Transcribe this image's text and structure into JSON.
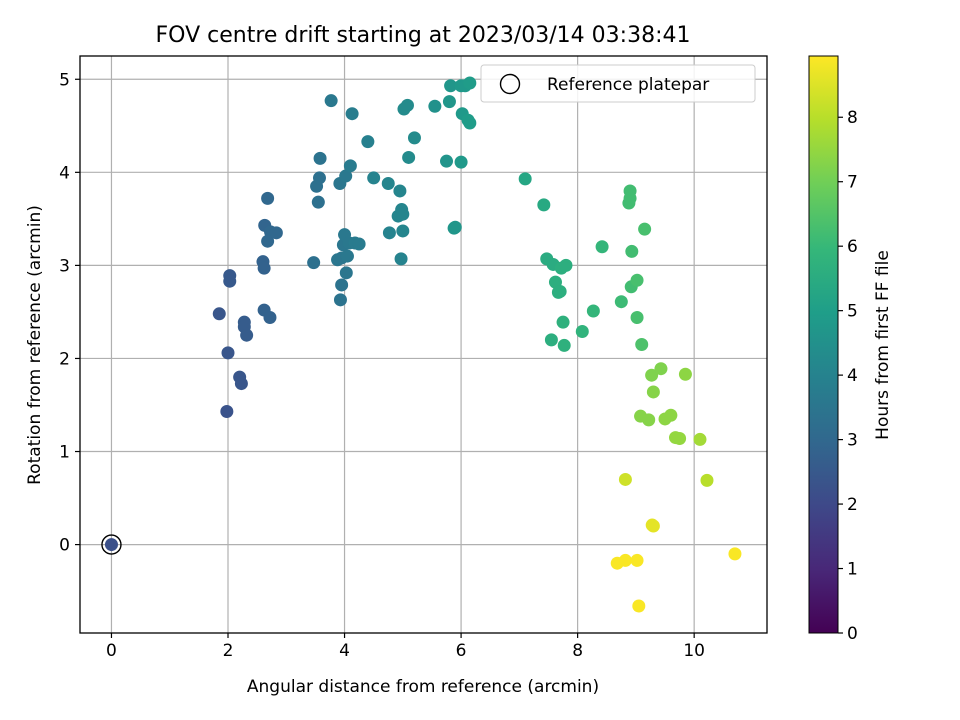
{
  "chart_data": {
    "type": "scatter",
    "title": "FOV centre drift starting at 2023/03/14 03:38:41",
    "xlabel": "Angular distance from reference (arcmin)",
    "ylabel": "Rotation from reference (arcmin)",
    "xlim": [
      -0.54,
      11.25
    ],
    "ylim": [
      -0.95,
      5.25
    ],
    "x_ticks": [
      0,
      2,
      4,
      6,
      8,
      10
    ],
    "y_ticks": [
      0,
      1,
      2,
      3,
      4,
      5
    ],
    "grid": true,
    "legend": {
      "position": "top-right",
      "label": "Reference platepar"
    },
    "reference_point": {
      "x": 0,
      "y": 0
    },
    "colorbar": {
      "label": "Hours from first FF file",
      "min": 0,
      "max": 8.95,
      "ticks": [
        0,
        1,
        2,
        3,
        4,
        5,
        6,
        7,
        8
      ],
      "colormap": [
        "#440154",
        "#482878",
        "#3e4989",
        "#31688e",
        "#26828e",
        "#1f9e89",
        "#35b779",
        "#6ece58",
        "#b5de2b",
        "#fde725"
      ]
    },
    "points": [
      {
        "x": 0.0,
        "y": 0.0,
        "h": 2.2
      },
      {
        "x": 1.85,
        "y": 2.48,
        "h": 2.4
      },
      {
        "x": 1.98,
        "y": 1.43,
        "h": 2.3
      },
      {
        "x": 2.0,
        "y": 2.06,
        "h": 2.4
      },
      {
        "x": 2.03,
        "y": 2.89,
        "h": 2.5
      },
      {
        "x": 2.03,
        "y": 2.83,
        "h": 2.5
      },
      {
        "x": 2.2,
        "y": 1.8,
        "h": 2.4
      },
      {
        "x": 2.23,
        "y": 1.73,
        "h": 2.4
      },
      {
        "x": 2.28,
        "y": 2.39,
        "h": 2.6
      },
      {
        "x": 2.28,
        "y": 2.34,
        "h": 2.6
      },
      {
        "x": 2.32,
        "y": 2.25,
        "h": 2.6
      },
      {
        "x": 2.6,
        "y": 3.04,
        "h": 2.8
      },
      {
        "x": 2.62,
        "y": 2.97,
        "h": 2.8
      },
      {
        "x": 2.62,
        "y": 2.52,
        "h": 2.8
      },
      {
        "x": 2.63,
        "y": 3.43,
        "h": 2.9
      },
      {
        "x": 2.68,
        "y": 3.72,
        "h": 3.0
      },
      {
        "x": 2.68,
        "y": 3.26,
        "h": 3.0
      },
      {
        "x": 2.72,
        "y": 2.44,
        "h": 2.8
      },
      {
        "x": 2.73,
        "y": 3.36,
        "h": 3.0
      },
      {
        "x": 2.83,
        "y": 3.35,
        "h": 3.0
      },
      {
        "x": 3.47,
        "y": 3.03,
        "h": 3.3
      },
      {
        "x": 3.52,
        "y": 3.85,
        "h": 3.3
      },
      {
        "x": 3.55,
        "y": 3.68,
        "h": 3.3
      },
      {
        "x": 3.57,
        "y": 3.94,
        "h": 3.3
      },
      {
        "x": 3.58,
        "y": 4.15,
        "h": 3.4
      },
      {
        "x": 3.77,
        "y": 4.77,
        "h": 3.6
      },
      {
        "x": 3.88,
        "y": 3.06,
        "h": 3.5
      },
      {
        "x": 3.92,
        "y": 3.88,
        "h": 3.5
      },
      {
        "x": 3.93,
        "y": 2.63,
        "h": 3.4
      },
      {
        "x": 3.95,
        "y": 3.08,
        "h": 3.5
      },
      {
        "x": 3.95,
        "y": 2.79,
        "h": 3.4
      },
      {
        "x": 3.98,
        "y": 3.22,
        "h": 3.5
      },
      {
        "x": 4.0,
        "y": 3.33,
        "h": 3.6
      },
      {
        "x": 4.02,
        "y": 3.96,
        "h": 3.6
      },
      {
        "x": 4.03,
        "y": 2.92,
        "h": 3.5
      },
      {
        "x": 4.05,
        "y": 3.1,
        "h": 3.6
      },
      {
        "x": 4.08,
        "y": 3.24,
        "h": 3.6
      },
      {
        "x": 4.1,
        "y": 4.07,
        "h": 3.7
      },
      {
        "x": 4.13,
        "y": 4.63,
        "h": 3.8
      },
      {
        "x": 4.18,
        "y": 3.24,
        "h": 3.7
      },
      {
        "x": 4.25,
        "y": 3.23,
        "h": 3.7
      },
      {
        "x": 4.4,
        "y": 4.33,
        "h": 3.9
      },
      {
        "x": 4.5,
        "y": 3.94,
        "h": 4.0
      },
      {
        "x": 4.75,
        "y": 3.88,
        "h": 4.1
      },
      {
        "x": 4.77,
        "y": 3.35,
        "h": 4.0
      },
      {
        "x": 4.92,
        "y": 3.53,
        "h": 4.1
      },
      {
        "x": 4.95,
        "y": 3.8,
        "h": 4.1
      },
      {
        "x": 4.97,
        "y": 3.07,
        "h": 4.0
      },
      {
        "x": 4.98,
        "y": 3.6,
        "h": 4.1
      },
      {
        "x": 5.0,
        "y": 3.37,
        "h": 4.1
      },
      {
        "x": 5.0,
        "y": 3.55,
        "h": 4.1
      },
      {
        "x": 5.02,
        "y": 4.68,
        "h": 4.3
      },
      {
        "x": 5.08,
        "y": 4.72,
        "h": 4.3
      },
      {
        "x": 5.1,
        "y": 4.16,
        "h": 4.3
      },
      {
        "x": 5.2,
        "y": 4.37,
        "h": 4.3
      },
      {
        "x": 5.55,
        "y": 4.71,
        "h": 4.5
      },
      {
        "x": 5.75,
        "y": 4.12,
        "h": 4.6
      },
      {
        "x": 5.8,
        "y": 4.76,
        "h": 4.7
      },
      {
        "x": 5.82,
        "y": 4.93,
        "h": 4.7
      },
      {
        "x": 5.88,
        "y": 3.4,
        "h": 4.7
      },
      {
        "x": 5.9,
        "y": 3.41,
        "h": 4.7
      },
      {
        "x": 6.0,
        "y": 4.93,
        "h": 4.8
      },
      {
        "x": 6.0,
        "y": 4.11,
        "h": 4.8
      },
      {
        "x": 6.02,
        "y": 4.63,
        "h": 4.8
      },
      {
        "x": 6.07,
        "y": 4.93,
        "h": 4.8
      },
      {
        "x": 6.12,
        "y": 4.56,
        "h": 4.9
      },
      {
        "x": 6.15,
        "y": 4.96,
        "h": 4.9
      },
      {
        "x": 6.15,
        "y": 4.53,
        "h": 4.9
      },
      {
        "x": 7.1,
        "y": 3.93,
        "h": 5.3
      },
      {
        "x": 7.42,
        "y": 3.65,
        "h": 5.4
      },
      {
        "x": 7.47,
        "y": 3.07,
        "h": 5.5
      },
      {
        "x": 7.55,
        "y": 2.2,
        "h": 5.6
      },
      {
        "x": 7.58,
        "y": 3.01,
        "h": 5.5
      },
      {
        "x": 7.62,
        "y": 2.82,
        "h": 5.6
      },
      {
        "x": 7.67,
        "y": 2.71,
        "h": 5.6
      },
      {
        "x": 7.7,
        "y": 2.72,
        "h": 5.6
      },
      {
        "x": 7.72,
        "y": 2.97,
        "h": 5.6
      },
      {
        "x": 7.75,
        "y": 2.39,
        "h": 5.7
      },
      {
        "x": 7.77,
        "y": 2.14,
        "h": 5.7
      },
      {
        "x": 7.8,
        "y": 3.0,
        "h": 5.6
      },
      {
        "x": 8.08,
        "y": 2.29,
        "h": 5.8
      },
      {
        "x": 8.27,
        "y": 2.51,
        "h": 5.9
      },
      {
        "x": 8.42,
        "y": 3.2,
        "h": 5.9
      },
      {
        "x": 8.75,
        "y": 2.61,
        "h": 6.1
      },
      {
        "x": 8.88,
        "y": 3.67,
        "h": 6.2
      },
      {
        "x": 8.9,
        "y": 3.8,
        "h": 6.2
      },
      {
        "x": 8.9,
        "y": 3.72,
        "h": 6.2
      },
      {
        "x": 8.92,
        "y": 2.77,
        "h": 6.2
      },
      {
        "x": 8.93,
        "y": 3.15,
        "h": 6.2
      },
      {
        "x": 9.02,
        "y": 2.84,
        "h": 6.3
      },
      {
        "x": 9.02,
        "y": 2.44,
        "h": 6.3
      },
      {
        "x": 9.1,
        "y": 2.15,
        "h": 6.4
      },
      {
        "x": 9.15,
        "y": 3.39,
        "h": 6.3
      },
      {
        "x": 9.08,
        "y": 1.38,
        "h": 7.3
      },
      {
        "x": 9.22,
        "y": 1.34,
        "h": 7.3
      },
      {
        "x": 9.27,
        "y": 1.82,
        "h": 7.2
      },
      {
        "x": 9.3,
        "y": 1.64,
        "h": 7.3
      },
      {
        "x": 9.43,
        "y": 1.89,
        "h": 7.2
      },
      {
        "x": 9.5,
        "y": 1.35,
        "h": 7.4
      },
      {
        "x": 9.6,
        "y": 1.39,
        "h": 7.4
      },
      {
        "x": 9.68,
        "y": 1.15,
        "h": 7.5
      },
      {
        "x": 9.75,
        "y": 1.14,
        "h": 7.5
      },
      {
        "x": 9.85,
        "y": 1.83,
        "h": 7.4
      },
      {
        "x": 10.1,
        "y": 1.13,
        "h": 7.7
      },
      {
        "x": 10.22,
        "y": 0.69,
        "h": 8.0
      },
      {
        "x": 8.82,
        "y": 0.7,
        "h": 8.3
      },
      {
        "x": 9.28,
        "y": 0.21,
        "h": 8.6
      },
      {
        "x": 9.3,
        "y": 0.2,
        "h": 8.6
      },
      {
        "x": 8.68,
        "y": -0.2,
        "h": 8.9
      },
      {
        "x": 8.82,
        "y": -0.17,
        "h": 8.9
      },
      {
        "x": 9.02,
        "y": -0.17,
        "h": 8.9
      },
      {
        "x": 9.05,
        "y": -0.66,
        "h": 8.9
      },
      {
        "x": 10.7,
        "y": -0.1,
        "h": 8.9
      }
    ]
  }
}
